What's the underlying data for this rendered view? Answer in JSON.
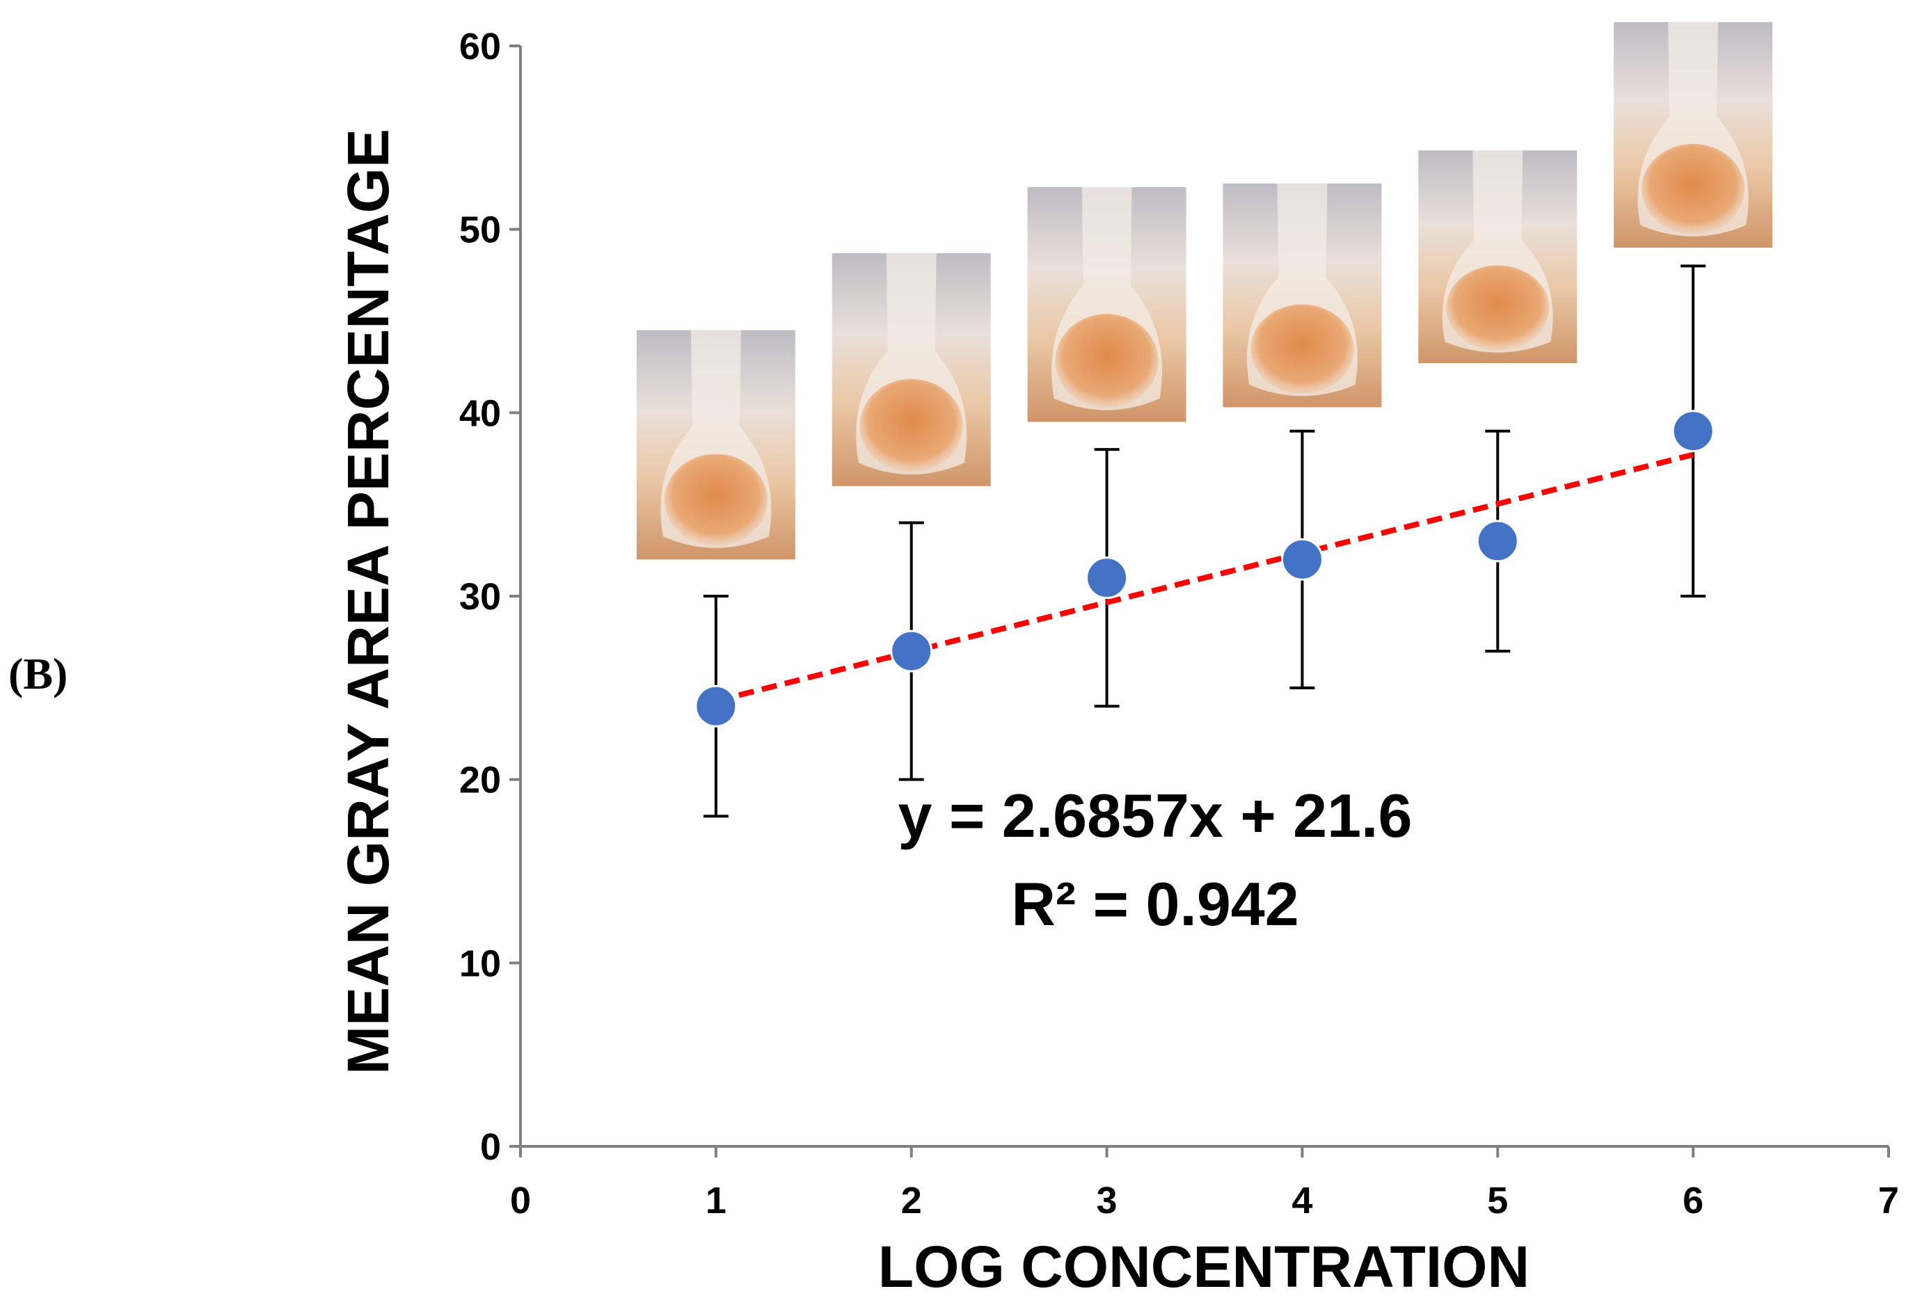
{
  "figure": {
    "panel_label": "(B)"
  },
  "chart_data": {
    "type": "scatter",
    "xlabel": "LOG CONCENTRATION",
    "ylabel": "MEAN GRAY AREA PERCENTAGE",
    "xlim": [
      0,
      7
    ],
    "ylim": [
      0,
      60
    ],
    "x_ticks": [
      0,
      1,
      2,
      3,
      4,
      5,
      6,
      7
    ],
    "y_ticks": [
      0,
      10,
      20,
      30,
      40,
      50,
      60
    ],
    "grid": false,
    "series": [
      {
        "x": [
          1,
          2,
          3,
          4,
          5,
          6
        ],
        "y": [
          24,
          27,
          31,
          32,
          33,
          39
        ],
        "error_low": [
          18,
          20,
          24,
          25,
          27,
          30
        ],
        "error_high": [
          30,
          34,
          38,
          39,
          39,
          48
        ],
        "color": "#4472C4"
      }
    ],
    "trendline": {
      "slope": 2.6857,
      "intercept": 21.6,
      "x_range": [
        1,
        6
      ],
      "color": "#FF0000",
      "style": "dashed"
    },
    "annotations": {
      "equation": "y = 2.6857x + 21.6",
      "r_squared_label": "R² = 0.942"
    },
    "sample_photos": {
      "description_icons": [
        "sample-photo-1",
        "sample-photo-2",
        "sample-photo-3",
        "sample-photo-4",
        "sample-photo-5",
        "sample-photo-6"
      ],
      "bottom_y": [
        32,
        36,
        39.5,
        40.3,
        42.7,
        49
      ],
      "top_y": [
        44.5,
        48.7,
        52.3,
        52.5,
        54.3,
        61.3
      ]
    }
  }
}
